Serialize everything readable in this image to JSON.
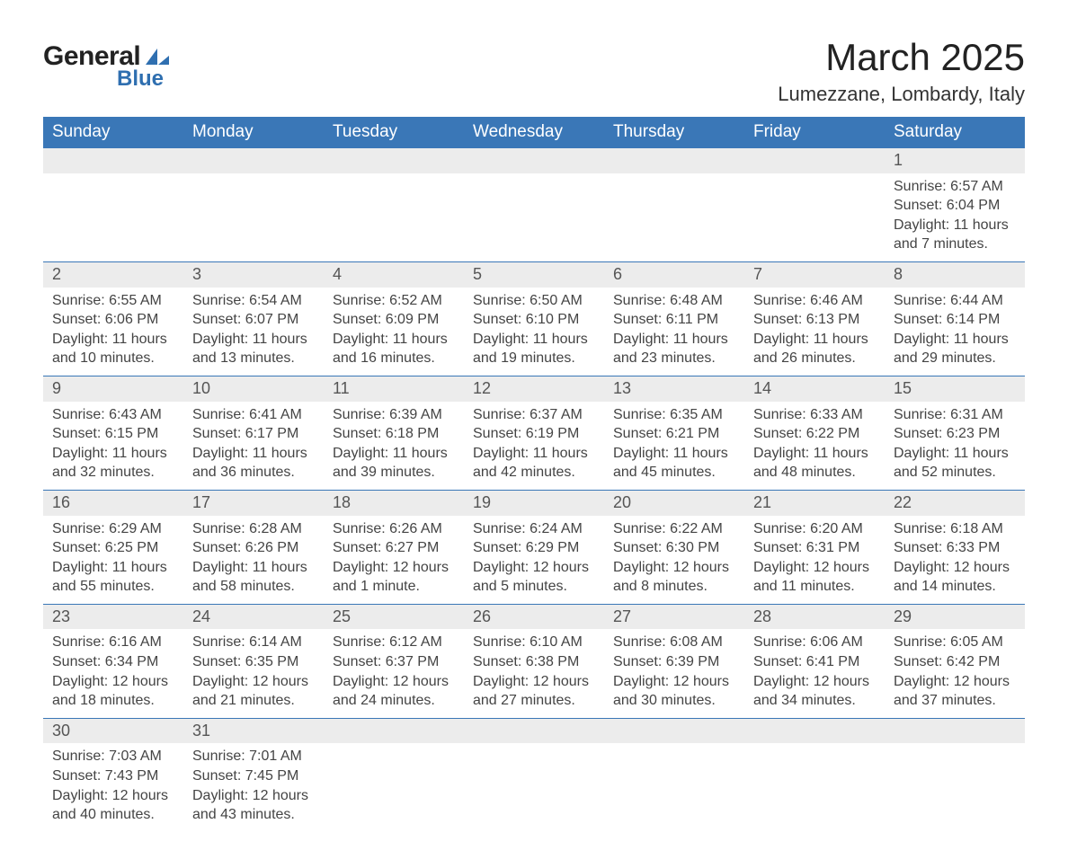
{
  "logo": {
    "text_general": "General",
    "text_blue": "Blue",
    "shape_color": "#2f6fb0"
  },
  "header": {
    "title": "March 2025",
    "subtitle": "Lumezzane, Lombardy, Italy"
  },
  "colors": {
    "header_bg": "#3a77b7",
    "header_fg": "#ffffff",
    "row_border": "#3a77b7",
    "daynum_bg": "#ececec",
    "text": "#444444"
  },
  "weekdays": [
    "Sunday",
    "Monday",
    "Tuesday",
    "Wednesday",
    "Thursday",
    "Friday",
    "Saturday"
  ],
  "labels": {
    "sunrise": "Sunrise:",
    "sunset": "Sunset:",
    "daylight": "Daylight:"
  },
  "weeks": [
    [
      null,
      null,
      null,
      null,
      null,
      null,
      {
        "d": "1",
        "sunrise": "6:57 AM",
        "sunset": "6:04 PM",
        "daylight": "11 hours and 7 minutes."
      }
    ],
    [
      {
        "d": "2",
        "sunrise": "6:55 AM",
        "sunset": "6:06 PM",
        "daylight": "11 hours and 10 minutes."
      },
      {
        "d": "3",
        "sunrise": "6:54 AM",
        "sunset": "6:07 PM",
        "daylight": "11 hours and 13 minutes."
      },
      {
        "d": "4",
        "sunrise": "6:52 AM",
        "sunset": "6:09 PM",
        "daylight": "11 hours and 16 minutes."
      },
      {
        "d": "5",
        "sunrise": "6:50 AM",
        "sunset": "6:10 PM",
        "daylight": "11 hours and 19 minutes."
      },
      {
        "d": "6",
        "sunrise": "6:48 AM",
        "sunset": "6:11 PM",
        "daylight": "11 hours and 23 minutes."
      },
      {
        "d": "7",
        "sunrise": "6:46 AM",
        "sunset": "6:13 PM",
        "daylight": "11 hours and 26 minutes."
      },
      {
        "d": "8",
        "sunrise": "6:44 AM",
        "sunset": "6:14 PM",
        "daylight": "11 hours and 29 minutes."
      }
    ],
    [
      {
        "d": "9",
        "sunrise": "6:43 AM",
        "sunset": "6:15 PM",
        "daylight": "11 hours and 32 minutes."
      },
      {
        "d": "10",
        "sunrise": "6:41 AM",
        "sunset": "6:17 PM",
        "daylight": "11 hours and 36 minutes."
      },
      {
        "d": "11",
        "sunrise": "6:39 AM",
        "sunset": "6:18 PM",
        "daylight": "11 hours and 39 minutes."
      },
      {
        "d": "12",
        "sunrise": "6:37 AM",
        "sunset": "6:19 PM",
        "daylight": "11 hours and 42 minutes."
      },
      {
        "d": "13",
        "sunrise": "6:35 AM",
        "sunset": "6:21 PM",
        "daylight": "11 hours and 45 minutes."
      },
      {
        "d": "14",
        "sunrise": "6:33 AM",
        "sunset": "6:22 PM",
        "daylight": "11 hours and 48 minutes."
      },
      {
        "d": "15",
        "sunrise": "6:31 AM",
        "sunset": "6:23 PM",
        "daylight": "11 hours and 52 minutes."
      }
    ],
    [
      {
        "d": "16",
        "sunrise": "6:29 AM",
        "sunset": "6:25 PM",
        "daylight": "11 hours and 55 minutes."
      },
      {
        "d": "17",
        "sunrise": "6:28 AM",
        "sunset": "6:26 PM",
        "daylight": "11 hours and 58 minutes."
      },
      {
        "d": "18",
        "sunrise": "6:26 AM",
        "sunset": "6:27 PM",
        "daylight": "12 hours and 1 minute."
      },
      {
        "d": "19",
        "sunrise": "6:24 AM",
        "sunset": "6:29 PM",
        "daylight": "12 hours and 5 minutes."
      },
      {
        "d": "20",
        "sunrise": "6:22 AM",
        "sunset": "6:30 PM",
        "daylight": "12 hours and 8 minutes."
      },
      {
        "d": "21",
        "sunrise": "6:20 AM",
        "sunset": "6:31 PM",
        "daylight": "12 hours and 11 minutes."
      },
      {
        "d": "22",
        "sunrise": "6:18 AM",
        "sunset": "6:33 PM",
        "daylight": "12 hours and 14 minutes."
      }
    ],
    [
      {
        "d": "23",
        "sunrise": "6:16 AM",
        "sunset": "6:34 PM",
        "daylight": "12 hours and 18 minutes."
      },
      {
        "d": "24",
        "sunrise": "6:14 AM",
        "sunset": "6:35 PM",
        "daylight": "12 hours and 21 minutes."
      },
      {
        "d": "25",
        "sunrise": "6:12 AM",
        "sunset": "6:37 PM",
        "daylight": "12 hours and 24 minutes."
      },
      {
        "d": "26",
        "sunrise": "6:10 AM",
        "sunset": "6:38 PM",
        "daylight": "12 hours and 27 minutes."
      },
      {
        "d": "27",
        "sunrise": "6:08 AM",
        "sunset": "6:39 PM",
        "daylight": "12 hours and 30 minutes."
      },
      {
        "d": "28",
        "sunrise": "6:06 AM",
        "sunset": "6:41 PM",
        "daylight": "12 hours and 34 minutes."
      },
      {
        "d": "29",
        "sunrise": "6:05 AM",
        "sunset": "6:42 PM",
        "daylight": "12 hours and 37 minutes."
      }
    ],
    [
      {
        "d": "30",
        "sunrise": "7:03 AM",
        "sunset": "7:43 PM",
        "daylight": "12 hours and 40 minutes."
      },
      {
        "d": "31",
        "sunrise": "7:01 AM",
        "sunset": "7:45 PM",
        "daylight": "12 hours and 43 minutes."
      },
      null,
      null,
      null,
      null,
      null
    ]
  ]
}
